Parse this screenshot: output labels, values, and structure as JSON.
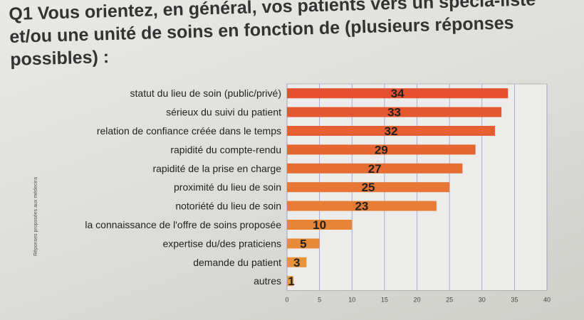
{
  "chart_data": {
    "type": "bar",
    "orientation": "horizontal",
    "title": "Q1 Vous orientez, en général, vos patients vers un spécia-liste et/ou une unité de soins en fonction de (plusieurs réponses possibles) :",
    "ylabel": "Réponses proposées aux médecins",
    "xlabel": "",
    "categories": [
      "statut du lieu de soin (public/privé)",
      "sérieux du suivi du patient",
      "relation de confiance créée dans le temps",
      "rapidité du compte-rendu",
      "rapidité de la prise en charge",
      "proximité du lieu de soin",
      "notoriété du lieu de soin",
      "la connaissance de l'offre de soins proposée",
      "expertise du/des praticiens",
      "demande du patient",
      "autres"
    ],
    "values": [
      34,
      33,
      32,
      29,
      27,
      25,
      23,
      10,
      5,
      3,
      1
    ],
    "xlim": [
      0,
      40
    ],
    "xticks": [
      0,
      5,
      10,
      15,
      20,
      25,
      30,
      35,
      40
    ],
    "grid": true,
    "bar_color_start": "#e4502e",
    "bar_color_end": "#e99a3a"
  }
}
